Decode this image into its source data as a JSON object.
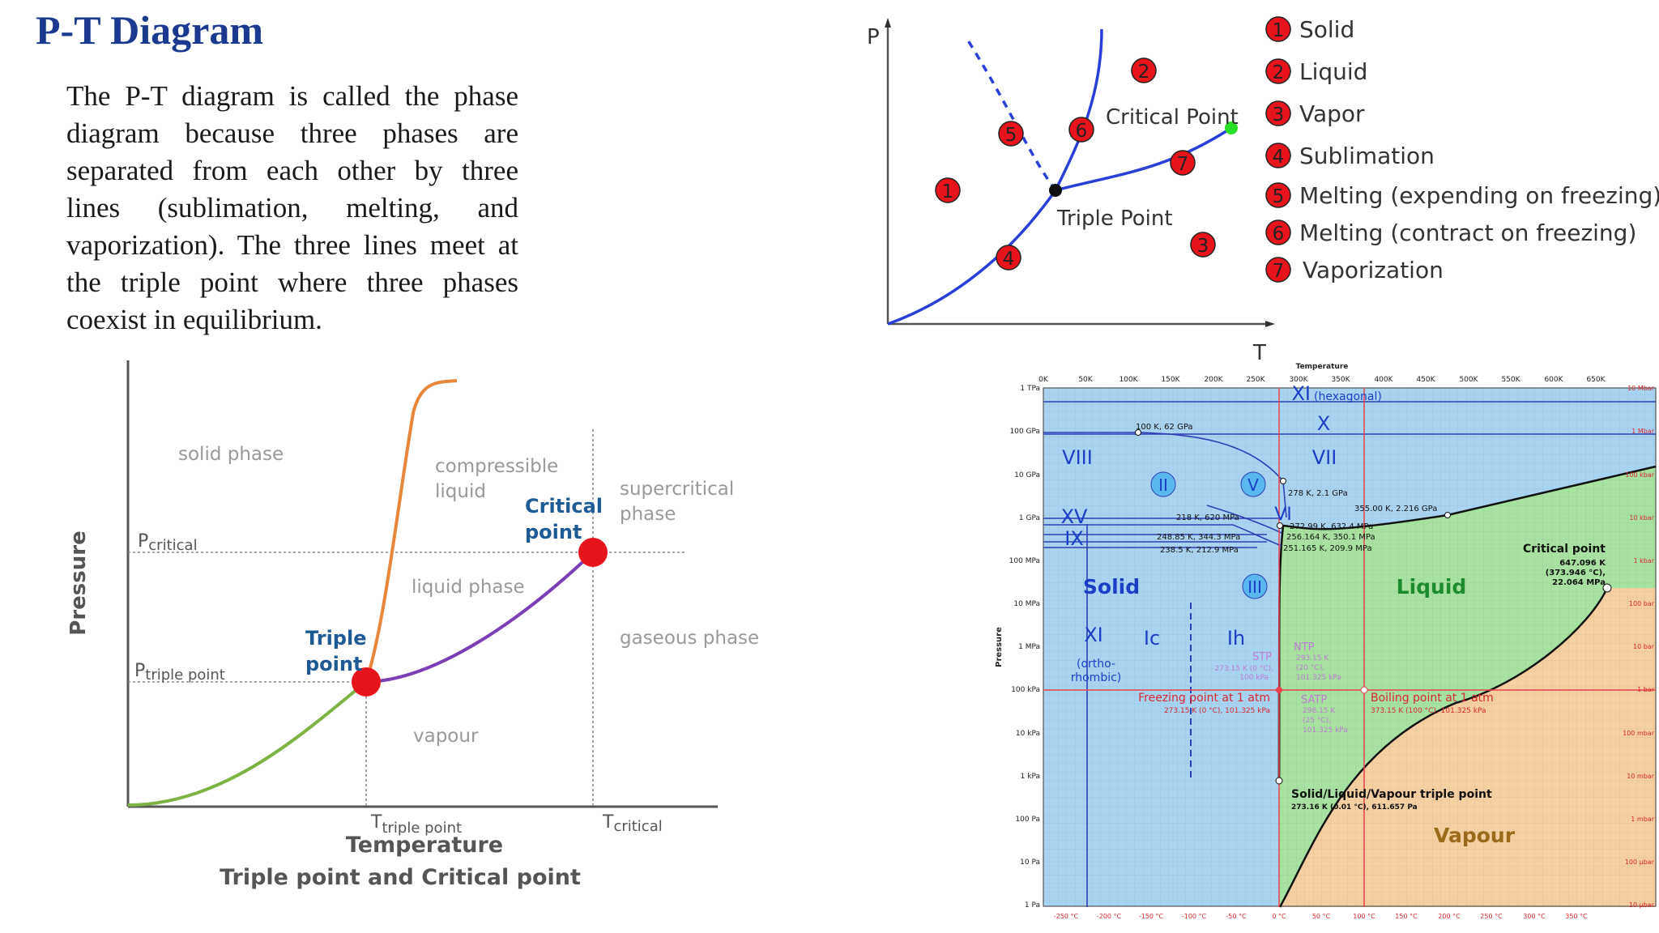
{
  "page": {
    "title": "P-T Diagram",
    "paragraph": "The P-T diagram is called the phase diagram because three phases are separated from each other by three lines (sublimation, melting, and vaporization). The three lines meet at the triple point where three phases coexist in equilibrium."
  },
  "left_diagram": {
    "y_axis_label": "Pressure",
    "x_axis_label": "Temperature",
    "caption": "Triple point and Critical point",
    "regions": {
      "solid": "solid phase",
      "compressible_1": "compressible",
      "compressible_2": "liquid",
      "liquid": "liquid phase",
      "supercritical_1": "supercritical",
      "supercritical_2": "phase",
      "gaseous": "gaseous phase",
      "vapour": "vapour"
    },
    "points": {
      "critical_1": "Critical",
      "critical_2": "point",
      "triple_1": "Triple",
      "triple_2": "point"
    },
    "axis_marks": {
      "p_critical_base": "P",
      "p_critical_sub": "critical",
      "p_triple_base": "P",
      "p_triple_sub": "triple point",
      "t_triple_base": "T",
      "t_triple_sub": "triple point",
      "t_critical_base": "T",
      "t_critical_sub": "critical"
    },
    "colors": {
      "sublimation": "#7cb342",
      "melting": "#e8863a",
      "vaporization": "#7b3fb5",
      "point": "#e8141b",
      "label": "#1e5a96"
    }
  },
  "top_right_diagram": {
    "p_label": "P",
    "t_label": "T",
    "critical_point": "Critical Point",
    "triple_point": "Triple Point",
    "markers": [
      "1",
      "2",
      "3",
      "4",
      "5",
      "6",
      "7"
    ],
    "legend": [
      {
        "num": "1",
        "label": "Solid"
      },
      {
        "num": "2",
        "label": "Liquid"
      },
      {
        "num": "3",
        "label": "Vapor"
      },
      {
        "num": "4",
        "label": "Sublimation"
      },
      {
        "num": "5",
        "label": "Melting (expending on freezing)"
      },
      {
        "num": "6",
        "label": "Melting (contract on freezing)"
      },
      {
        "num": "7",
        "label": "Vaporization"
      }
    ]
  },
  "water_diagram": {
    "top_title": "Temperature",
    "y_title": "Pressure",
    "kelvin_ticks": [
      "0K",
      "50K",
      "100K",
      "150K",
      "200K",
      "250K",
      "300K",
      "350K",
      "400K",
      "450K",
      "500K",
      "550K",
      "600K",
      "650K"
    ],
    "celsius_ticks": [
      "-250 °C",
      "-200 °C",
      "-150 °C",
      "-100 °C",
      "-50 °C",
      "0 °C",
      "50 °C",
      "100 °C",
      "150 °C",
      "200 °C",
      "250 °C",
      "300 °C",
      "350 °C"
    ],
    "pressure_ticks": [
      "1 TPa",
      "100 GPa",
      "10 GPa",
      "1 GPa",
      "100 MPa",
      "10 MPa",
      "1 MPa",
      "100 kPa",
      "10 kPa",
      "1 kPa",
      "100 Pa",
      "10 Pa",
      "1 Pa"
    ],
    "right_ticks": [
      "10 Mbar",
      "1 Mbar",
      "100 kbar",
      "10 kbar",
      "1 kbar",
      "100 bar",
      "10 bar",
      "1 bar",
      "100 mbar",
      "10 mbar",
      "1 mbar",
      "100 µbar",
      "10 µbar"
    ],
    "phases": {
      "xi_hex": "XI",
      "xi_hex_note": "(hexagonal)",
      "x": "X",
      "vii": "VII",
      "viii": "VIII",
      "ii": "II",
      "v": "V",
      "vi": "VI",
      "xv": "XV",
      "ix": "IX",
      "iii": "III",
      "solid": "Solid",
      "liquid": "Liquid",
      "vapour": "Vapour",
      "xi": "XI",
      "xi_note_1": "(ortho-",
      "xi_note_2": "rhombic)",
      "ic": "Ic",
      "ih": "Ih"
    },
    "annotations": {
      "p100k": "100 K, 62 GPa",
      "p278": "278 K, 2.1 GPa",
      "p355": "355.00 K, 2.216 GPa",
      "p218": "218 K, 620 MPa",
      "p272": "272.99 K, 632.4 MPa",
      "p248": "248.85 K, 344.3 MPa",
      "p256": "256.164 K, 350.1 MPa",
      "p238": "238.5 K, 212.9 MPa",
      "p251": "251.165 K, 209.9 MPa",
      "critical_title": "Critical point",
      "critical_1": "647.096 K",
      "critical_2": "(373.946 °C),",
      "critical_3": "22.064 MPa",
      "stp": "STP",
      "stp_1": "273.15 K (0 °C),",
      "stp_2": "100 kPa",
      "ntp": "NTP",
      "ntp_1": "293.15 K",
      "ntp_2": "(20 °C),",
      "ntp_3": "101.325 kPa",
      "satp": "SATP",
      "satp_1": "298.15 K",
      "satp_2": "(25 °C),",
      "satp_3": "101.325 kPa",
      "freezing_title": "Freezing point at 1 atm",
      "freezing_sub": "273.15 K (0 °C), 101.325 kPa",
      "boiling_title": "Boiling point at 1 atm",
      "boiling_sub": "373.15 K (100 °C), 101.325 kPa",
      "triple_title": "Solid/Liquid/Vapour triple point",
      "triple_sub": "273.16 K (0.01 °C), 611.657 Pa"
    },
    "colors": {
      "solid": "#a8d4f2",
      "liquid": "#a8e2a0",
      "vapour": "#f5cfa0",
      "line": "#1a1a1a",
      "phase_line": "#2d3fb4",
      "text_blue": "#1a3fc4",
      "text_green": "#1c8c2c",
      "text_brown": "#9a6a1a",
      "text_red": "#d8282c",
      "text_purple": "#c07ad8"
    }
  }
}
